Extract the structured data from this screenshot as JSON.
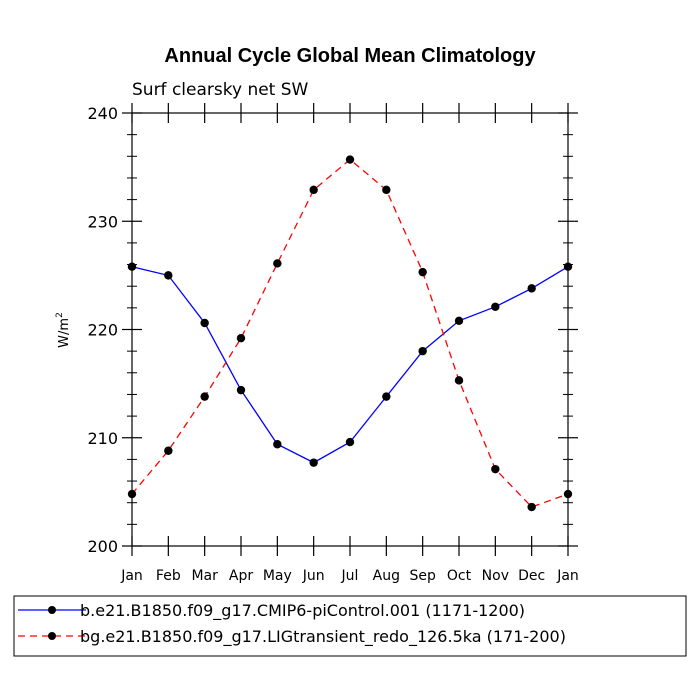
{
  "chart_data": {
    "type": "line",
    "title": "Annual Cycle Global Mean Climatology",
    "subtitle": "Surf clearsky net SW",
    "ylabel": "W/m",
    "ylabel_sup": "2",
    "ylim": [
      200,
      240
    ],
    "yticks": [
      200,
      210,
      220,
      230,
      240
    ],
    "categories": [
      "Jan",
      "Feb",
      "Mar",
      "Apr",
      "May",
      "Jun",
      "Jul",
      "Aug",
      "Sep",
      "Oct",
      "Nov",
      "Dec",
      "Jan"
    ],
    "series": [
      {
        "name": "b.e21.B1850.f09_g17.CMIP6-piControl.001 (1171-1200)",
        "color": "#0000ff",
        "dash": "solid",
        "values": [
          225.8,
          225.0,
          220.6,
          214.4,
          209.4,
          207.7,
          209.6,
          213.8,
          218.0,
          220.8,
          222.1,
          223.8,
          225.8
        ]
      },
      {
        "name": "bg.e21.B1850.f09_g17.LIGtransient_redo_126.5ka (171-200)",
        "color": "#ff0000",
        "dash": "dashed",
        "values": [
          204.8,
          208.8,
          213.8,
          219.2,
          226.1,
          232.9,
          235.7,
          232.9,
          225.3,
          215.3,
          207.1,
          203.6,
          204.8
        ]
      }
    ]
  }
}
